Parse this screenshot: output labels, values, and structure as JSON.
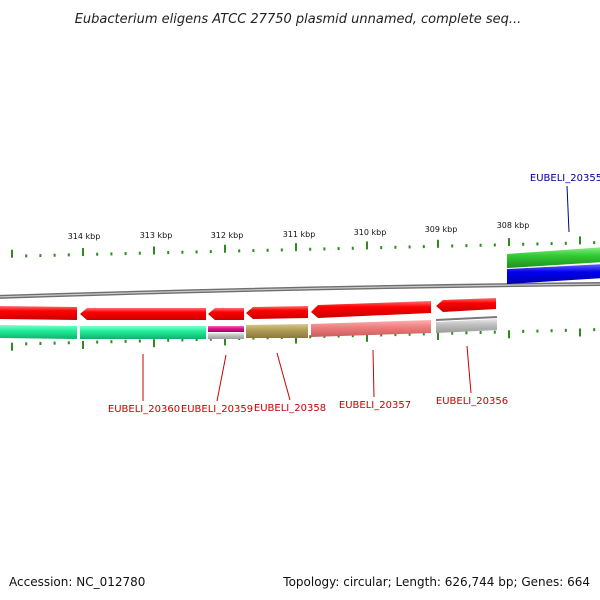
{
  "title": "Eubacterium eligens ATCC 27750 plasmid unnamed, complete seq...",
  "footer": {
    "accession": "Accession: NC_012780",
    "summary": "Topology: circular; Length: 626,744 bp; Genes: 664"
  },
  "colors": {
    "backbone": "#8a8a8a",
    "tick": "#2e8b1e",
    "gene_red": "#ff0000",
    "label_red": "#cc0000",
    "label_blue": "#000099",
    "teal": "#22ee99",
    "magenta": "#e0148c",
    "olive": "#b3a05a",
    "salmon": "#f08080",
    "grey": "#c0c0c0",
    "green": "#33cc33",
    "blue": "#0000ee"
  },
  "ruler": [
    "314 kbp",
    "313 kbp",
    "312 kbp",
    "311 kbp",
    "310 kbp",
    "309 kbp",
    "308 kbp"
  ],
  "genes": [
    {
      "label": "EUBELI_20360",
      "color": "label_red"
    },
    {
      "label": "EUBELI_20359",
      "color": "label_red"
    },
    {
      "label": "EUBELI_20358",
      "color": "label_red"
    },
    {
      "label": "EUBELI_20357",
      "color": "label_red"
    },
    {
      "label": "EUBELI_20356",
      "color": "label_red"
    },
    {
      "label": "EUBELI_20355",
      "color": "label_blue"
    }
  ]
}
